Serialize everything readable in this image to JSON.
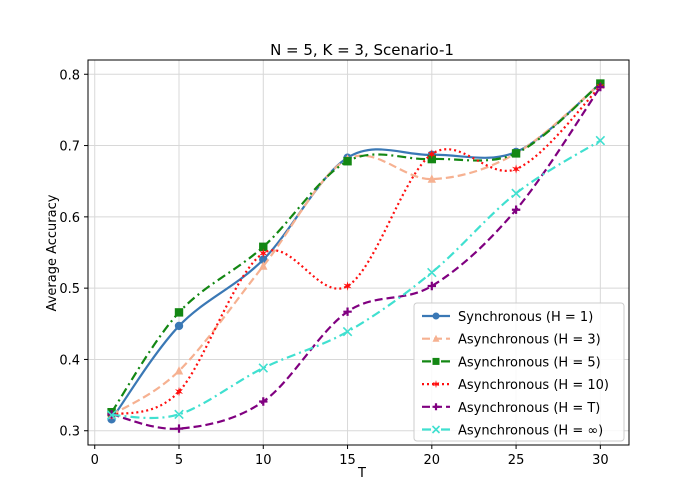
{
  "chart_data": {
    "type": "line",
    "title": "N = 5, K = 3, Scenario-1",
    "xlabel": "T",
    "ylabel": "Average Accuracy",
    "xlim": [
      -0.4,
      31.7
    ],
    "ylim": [
      0.28,
      0.82
    ],
    "xticks": [
      0,
      5,
      10,
      15,
      20,
      25,
      30
    ],
    "yticks": [
      0.3,
      0.4,
      0.5,
      0.6,
      0.7,
      0.8
    ],
    "xtick_labels": [
      "0",
      "5",
      "10",
      "15",
      "20",
      "25",
      "30"
    ],
    "ytick_labels": [
      "0.3",
      "0.4",
      "0.5",
      "0.6",
      "0.7",
      "0.8"
    ],
    "grid": true,
    "legend_position": "lower-right",
    "x": [
      1,
      5,
      10,
      15,
      20,
      25,
      30
    ],
    "series": [
      {
        "name": "Synchronous (H = 1)",
        "values": [
          0.316,
          0.447,
          0.54,
          0.683,
          0.687,
          0.691,
          0.787
        ],
        "color": "#3a78b5",
        "dash": "",
        "marker": "circle"
      },
      {
        "name": "Asynchronous (H = 3)",
        "values": [
          0.322,
          0.384,
          0.531,
          0.681,
          0.653,
          0.689,
          0.787
        ],
        "color": "#f6b191",
        "dash": "8,4",
        "marker": "triangle"
      },
      {
        "name": "Asynchronous (H = 5)",
        "values": [
          0.326,
          0.466,
          0.558,
          0.678,
          0.681,
          0.689,
          0.787
        ],
        "color": "#138713",
        "dash": "9,4,2,4",
        "marker": "square"
      },
      {
        "name": "Asynchronous (H = 10)",
        "values": [
          0.322,
          0.355,
          0.549,
          0.503,
          0.688,
          0.667,
          0.783
        ],
        "color": "#ff0f0f",
        "dash": "2,3",
        "marker": "star"
      },
      {
        "name": "Asynchronous (H = T)",
        "values": [
          0.323,
          0.303,
          0.341,
          0.467,
          0.503,
          0.61,
          0.782
        ],
        "color": "#800080",
        "dash": "8,4",
        "marker": "plus"
      },
      {
        "name": "Asynchronous (H = ∞)",
        "values": [
          0.322,
          0.323,
          0.388,
          0.439,
          0.522,
          0.633,
          0.707
        ],
        "color": "#40e0d0",
        "dash": "9,4,2,4",
        "marker": "x"
      }
    ]
  }
}
